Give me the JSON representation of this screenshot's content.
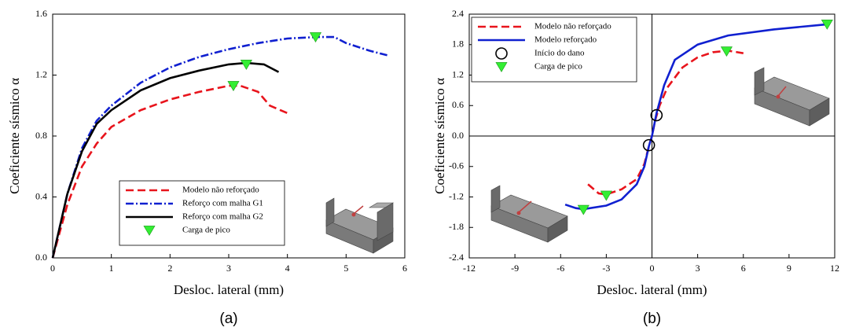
{
  "chart_data": [
    {
      "type": "line",
      "caption": "(a)",
      "x_label": "Desloc. lateral (mm)",
      "y_label": "Coeficiente sísmico α",
      "xlim": [
        0,
        6
      ],
      "xticks": [
        0,
        1,
        2,
        3,
        4,
        5,
        6
      ],
      "ylim": [
        0,
        1.6
      ],
      "yticks": [
        {
          "value": 0,
          "label": "0.0"
        },
        0.4,
        0.8,
        1.2,
        1.6
      ],
      "legend": "lower right",
      "zero_lines": false,
      "series": [
        {
          "name": "Modelo não reforçado",
          "color": "#e8141c",
          "style": "dashed",
          "x": [
            0,
            0.25,
            0.5,
            0.75,
            1,
            1.5,
            2,
            2.5,
            3,
            3.2,
            3.5,
            3.7,
            4
          ],
          "values": [
            0,
            0.35,
            0.6,
            0.75,
            0.86,
            0.97,
            1.04,
            1.09,
            1.13,
            1.13,
            1.09,
            1.0,
            0.95
          ]
        },
        {
          "name": "Reforço com malha G1",
          "color": "#1020d0",
          "style": "dashdot",
          "x": [
            0,
            0.25,
            0.5,
            0.75,
            1,
            1.5,
            2,
            2.5,
            3,
            3.5,
            4,
            4.5,
            4.8,
            5,
            5.4,
            5.7
          ],
          "values": [
            0,
            0.42,
            0.72,
            0.9,
            1.0,
            1.15,
            1.25,
            1.32,
            1.37,
            1.41,
            1.44,
            1.45,
            1.45,
            1.41,
            1.36,
            1.33
          ]
        },
        {
          "name": "Reforço com malha G2",
          "color": "#000000",
          "style": "solid",
          "x": [
            0,
            0.25,
            0.5,
            0.75,
            1,
            1.5,
            2,
            2.5,
            3,
            3.3,
            3.6,
            3.85
          ],
          "values": [
            0,
            0.42,
            0.7,
            0.88,
            0.97,
            1.1,
            1.18,
            1.23,
            1.27,
            1.28,
            1.27,
            1.22
          ]
        },
        {
          "name": "Carga de pico",
          "color": "#33ee33",
          "marker": "triangle",
          "x": [
            3.08,
            3.3,
            4.48
          ],
          "values": [
            1.13,
            1.27,
            1.45
          ]
        }
      ]
    },
    {
      "type": "line",
      "caption": "(b)",
      "x_label": "Desloc. lateral (mm)",
      "y_label": "Coeficiente sísmico α",
      "xlim": [
        -12,
        12
      ],
      "xticks": [
        -12,
        -9,
        -6,
        -3,
        0,
        3,
        6,
        9,
        12
      ],
      "ylim": [
        -2.4,
        2.4
      ],
      "yticks": [
        -2.4,
        -1.8,
        -1.2,
        -0.6,
        {
          "value": 0,
          "label": "0.0"
        },
        0.6,
        1.2,
        1.8,
        2.4
      ],
      "legend": "upper left",
      "zero_lines": true,
      "series": [
        {
          "name": "Modelo não reforçado",
          "color": "#e8141c",
          "style": "dashed",
          "x": [
            -4.2,
            -3.5,
            -3,
            -2,
            -1,
            -0.5,
            -0.2,
            0,
            0.2,
            0.5,
            1,
            2,
            3,
            4,
            5,
            6
          ],
          "values": [
            -0.95,
            -1.13,
            -1.15,
            -1.05,
            -0.85,
            -0.55,
            -0.2,
            0,
            0.3,
            0.6,
            0.95,
            1.35,
            1.55,
            1.65,
            1.68,
            1.63
          ]
        },
        {
          "name": "Modelo reforçado",
          "color": "#1020d0",
          "style": "solid",
          "x": [
            -5.7,
            -5,
            -4.5,
            -3,
            -2,
            -1,
            -0.5,
            -0.2,
            0,
            0.3,
            0.8,
            1.5,
            3,
            5,
            8,
            11.5
          ],
          "values": [
            -1.35,
            -1.42,
            -1.44,
            -1.37,
            -1.25,
            -0.95,
            -0.6,
            -0.2,
            0,
            0.45,
            1.0,
            1.5,
            1.8,
            1.98,
            2.1,
            2.2
          ]
        },
        {
          "name": "Início do dano",
          "color": "#000000",
          "marker": "circle",
          "x": [
            -0.2,
            0.3
          ],
          "values": [
            -0.18,
            0.41
          ]
        },
        {
          "name": "Carga de pico",
          "color": "#33ee33",
          "marker": "triangle",
          "x": [
            -4.5,
            -3,
            4.9,
            11.5
          ],
          "values": [
            -1.45,
            -1.17,
            1.67,
            2.2
          ]
        }
      ]
    }
  ]
}
